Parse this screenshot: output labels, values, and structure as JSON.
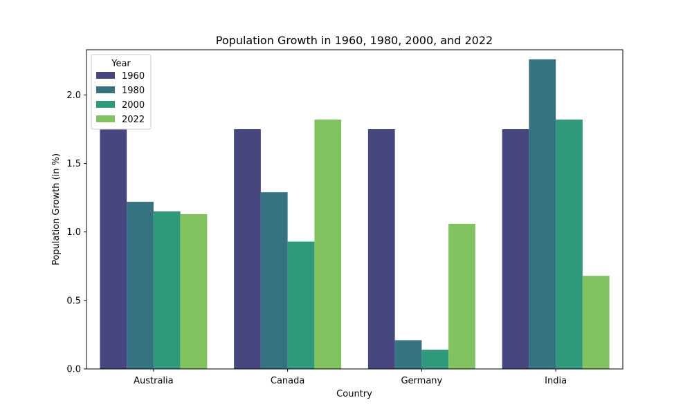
{
  "chart_data": {
    "type": "bar",
    "title": "Population Growth in 1960, 1980, 2000, and 2022",
    "xlabel": "Country",
    "ylabel": "Population Growth (in %)",
    "categories": [
      "Australia",
      "Canada",
      "Germany",
      "India"
    ],
    "series": [
      {
        "name": "1960",
        "color": "#46477f",
        "values": [
          1.75,
          1.75,
          1.75,
          1.75
        ]
      },
      {
        "name": "1980",
        "color": "#357282",
        "values": [
          1.22,
          1.29,
          0.21,
          2.26
        ]
      },
      {
        "name": "2000",
        "color": "#30987b",
        "values": [
          1.15,
          0.93,
          0.14,
          1.82
        ]
      },
      {
        "name": "2022",
        "color": "#80c35f",
        "values": [
          1.13,
          1.82,
          1.06,
          0.68
        ]
      }
    ],
    "ylim": [
      0,
      2.33
    ],
    "yticks": [
      "0.0",
      "0.5",
      "1.0",
      "1.5",
      "2.0"
    ],
    "legend": {
      "title": "Year",
      "position": "top-left"
    },
    "grid": false
  }
}
